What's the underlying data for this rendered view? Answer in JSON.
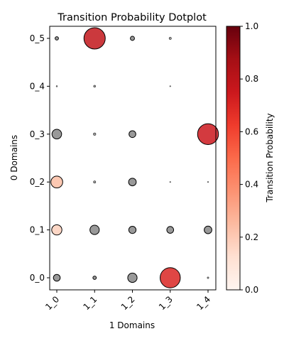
{
  "chart_data": {
    "type": "scatter",
    "title": "Transition Probability Dotplot",
    "xlabel": "1 Domains",
    "ylabel": "0 Domains",
    "x_categories": [
      "1_0",
      "1_1",
      "1_2",
      "1_3",
      "1_4"
    ],
    "y_categories": [
      "0_0",
      "0_1",
      "0_2",
      "0_3",
      "0_4",
      "0_5"
    ],
    "size_max": 1.0,
    "colorbar": {
      "label": "Transition Probability",
      "min": 0.0,
      "max": 1.0,
      "ticks": [
        "0.0",
        "0.2",
        "0.4",
        "0.6",
        "0.8",
        "1.0"
      ],
      "colormap": "Reds"
    },
    "points": [
      {
        "x": "1_0",
        "y": "0_5",
        "value": 0.02,
        "colored": false
      },
      {
        "x": "1_1",
        "y": "0_5",
        "value": 0.78,
        "colored": true
      },
      {
        "x": "1_2",
        "y": "0_5",
        "value": 0.03,
        "colored": false
      },
      {
        "x": "1_3",
        "y": "0_5",
        "value": 0.01,
        "colored": false
      },
      {
        "x": "1_0",
        "y": "0_4",
        "value": 0.003,
        "colored": false
      },
      {
        "x": "1_1",
        "y": "0_4",
        "value": 0.008,
        "colored": false
      },
      {
        "x": "1_3",
        "y": "0_4",
        "value": 0.002,
        "colored": false
      },
      {
        "x": "1_0",
        "y": "0_3",
        "value": 0.16,
        "colored": false
      },
      {
        "x": "1_1",
        "y": "0_3",
        "value": 0.012,
        "colored": false
      },
      {
        "x": "1_2",
        "y": "0_3",
        "value": 0.08,
        "colored": false
      },
      {
        "x": "1_4",
        "y": "0_3",
        "value": 0.75,
        "colored": true
      },
      {
        "x": "1_0",
        "y": "0_2",
        "value": 0.24,
        "colored": true
      },
      {
        "x": "1_1",
        "y": "0_2",
        "value": 0.01,
        "colored": false
      },
      {
        "x": "1_2",
        "y": "0_2",
        "value": 0.1,
        "colored": false
      },
      {
        "x": "1_3",
        "y": "0_2",
        "value": 0.002,
        "colored": false
      },
      {
        "x": "1_4",
        "y": "0_2",
        "value": 0.002,
        "colored": false
      },
      {
        "x": "1_0",
        "y": "0_1",
        "value": 0.18,
        "colored": true
      },
      {
        "x": "1_1",
        "y": "0_1",
        "value": 0.15,
        "colored": false
      },
      {
        "x": "1_2",
        "y": "0_1",
        "value": 0.09,
        "colored": false
      },
      {
        "x": "1_3",
        "y": "0_1",
        "value": 0.08,
        "colored": false
      },
      {
        "x": "1_4",
        "y": "0_1",
        "value": 0.1,
        "colored": false
      },
      {
        "x": "1_0",
        "y": "0_0",
        "value": 0.08,
        "colored": false
      },
      {
        "x": "1_1",
        "y": "0_0",
        "value": 0.02,
        "colored": false
      },
      {
        "x": "1_2",
        "y": "0_0",
        "value": 0.15,
        "colored": false
      },
      {
        "x": "1_3",
        "y": "0_0",
        "value": 0.7,
        "colored": true
      },
      {
        "x": "1_4",
        "y": "0_0",
        "value": 0.005,
        "colored": false
      }
    ]
  }
}
